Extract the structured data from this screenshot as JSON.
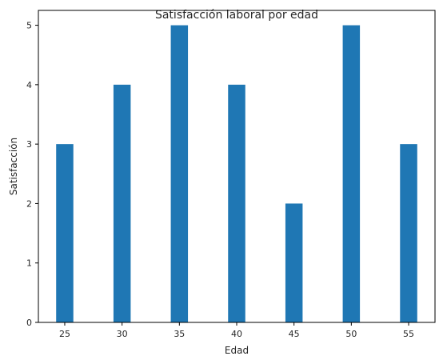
{
  "chart_data": {
    "type": "bar",
    "title": "Satisfacción laboral por edad",
    "xlabel": "Edad",
    "ylabel": "Satisfacción",
    "x": [
      25,
      30,
      35,
      40,
      45,
      50,
      55
    ],
    "values": [
      3,
      4,
      5,
      4,
      2,
      5,
      3
    ],
    "bar_width": 1.5,
    "xlim": [
      22.7,
      57.3
    ],
    "ylim": [
      0,
      5.25
    ],
    "xticks": [
      25,
      30,
      35,
      40,
      45,
      50,
      55
    ],
    "yticks": [
      0,
      1,
      2,
      3,
      4,
      5
    ],
    "bar_color": "#1f77b4",
    "grid": false,
    "legend": "none"
  }
}
